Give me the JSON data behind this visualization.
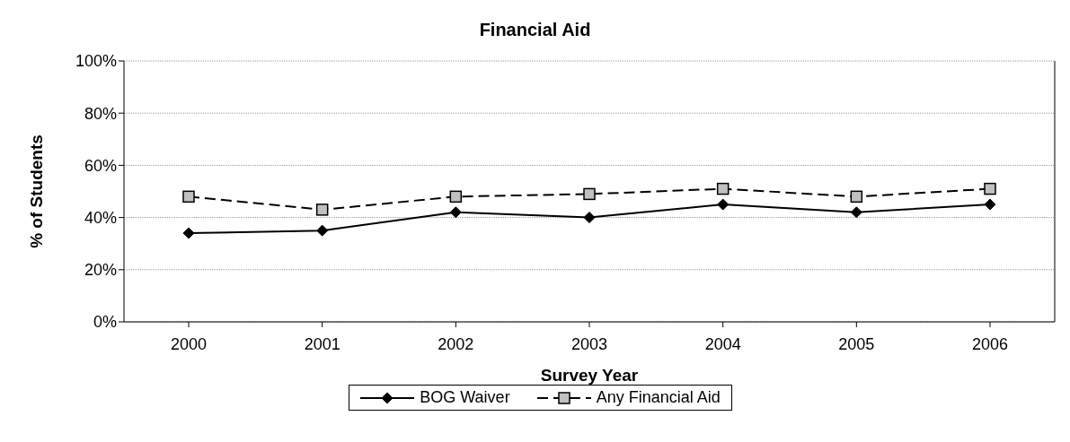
{
  "chart_data": {
    "type": "line",
    "title": "Financial Aid",
    "xlabel": "Survey Year",
    "ylabel": "% of Students",
    "categories": [
      "2000",
      "2001",
      "2002",
      "2003",
      "2004",
      "2005",
      "2006"
    ],
    "series": [
      {
        "name": "BOG Waiver",
        "color": "#000000",
        "marker": "diamond",
        "line_style": "solid",
        "values": [
          34,
          35,
          42,
          40,
          45,
          42,
          45
        ]
      },
      {
        "name": "Any Financial Aid",
        "color": "#c0c0c0",
        "marker": "square",
        "line_style": "dashed",
        "values": [
          48,
          43,
          48,
          49,
          51,
          48,
          51
        ]
      }
    ],
    "ylim": [
      0,
      100
    ],
    "yticks": [
      {
        "value": 0,
        "label": "0%"
      },
      {
        "value": 20,
        "label": "20%"
      },
      {
        "value": 40,
        "label": "40%"
      },
      {
        "value": 60,
        "label": "60%"
      },
      {
        "value": 80,
        "label": "80%"
      },
      {
        "value": 100,
        "label": "100%"
      }
    ],
    "grid": "y",
    "legend": "bottom"
  }
}
